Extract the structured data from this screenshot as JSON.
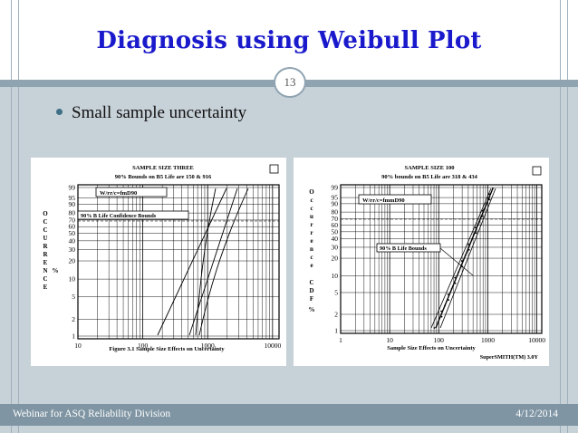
{
  "slide": {
    "title": "Diagnosis using Weibull Plot",
    "page_number": "13",
    "bullet": "Small sample uncertainty",
    "footer_left": "Webinar for ASQ Reliability Division",
    "footer_right": "4/12/2014",
    "colors": {
      "title": "#1a1acc",
      "background": "#c7d1d8",
      "footer": "#7f95a3"
    }
  },
  "left_plot": {
    "header_line1": "SAMPLE SIZE THREE",
    "header_line2": "90% Bounds on B5 Life are 150 & 916",
    "legend": "W/rr/c=fmD90",
    "band_label": "90% B Life Confidence Bounds",
    "ylabel_chars": [
      "O",
      "C",
      "C",
      "U",
      "R",
      "R",
      "E",
      "N",
      "C",
      "E"
    ],
    "ylabel_suffix": "%",
    "caption": "Figure 3.1 Sample Size Effects on Uncertainty",
    "y_ticks": [
      "99",
      "95",
      "90",
      "80",
      "70",
      "60",
      "50",
      "40",
      "30",
      "20",
      "10",
      "5",
      "2",
      "1"
    ],
    "x_ticks": [
      "10",
      "100",
      "1000",
      "10000"
    ]
  },
  "right_plot": {
    "header_line1": "SAMPLE SIZE 100",
    "header_line2": "90% bounds on B5 Life are 318 & 434",
    "legend": "W/rr/c=fmmD90",
    "band_label": "90% B Life Bounds",
    "ylabel_chars": [
      "O",
      "c",
      "c",
      "u",
      "r",
      "r",
      "e",
      "n",
      "c",
      "e"
    ],
    "ylabel_cdf": [
      "C",
      "D",
      "F"
    ],
    "ylabel_suffix": "%",
    "caption": "Sample Size Effects on Uncertainty",
    "footer_tag": "SuperSMITH(TM) 3.0Y",
    "y_ticks": [
      "99",
      "95",
      "90",
      "80",
      "70",
      "60",
      "50",
      "40",
      "30",
      "20",
      "10",
      "5",
      "2",
      "1"
    ],
    "x_ticks": [
      "1",
      "10",
      "100",
      "1000",
      "10000"
    ]
  }
}
